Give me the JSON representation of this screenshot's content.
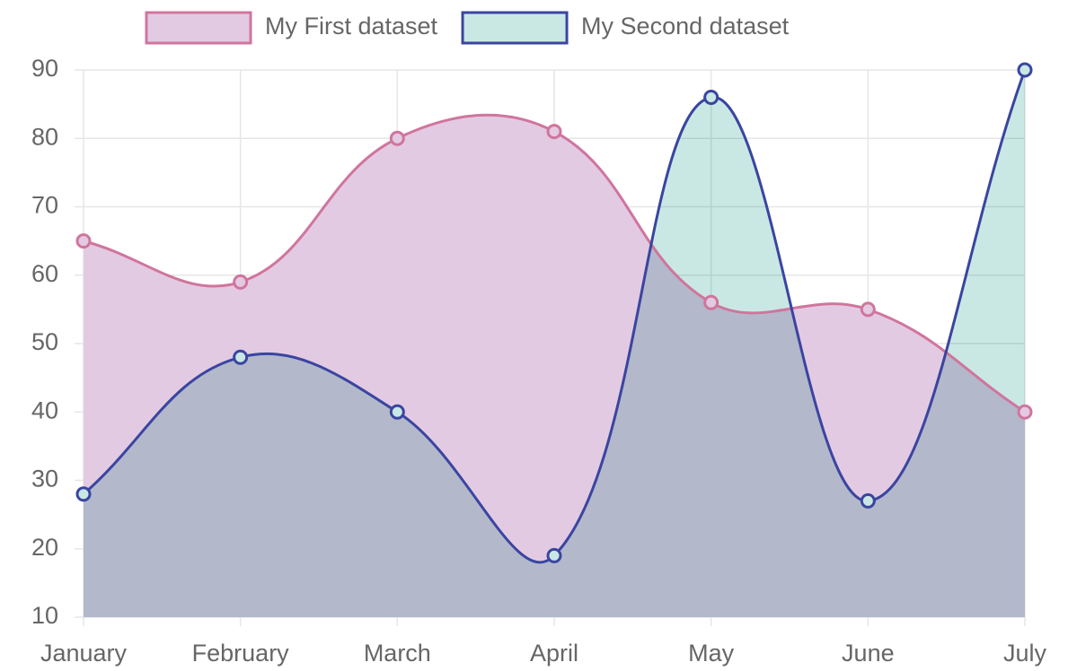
{
  "chart_data": {
    "type": "line",
    "categories": [
      "January",
      "February",
      "March",
      "April",
      "May",
      "June",
      "July"
    ],
    "series": [
      {
        "name": "My First dataset",
        "color": "#d0759c",
        "fill": "#e3cae3",
        "values": [
          65,
          59,
          80,
          81,
          56,
          55,
          40
        ]
      },
      {
        "name": "My Second dataset",
        "color": "#3a45a0",
        "fill": "#c9e8e4",
        "values": [
          28,
          48,
          40,
          19,
          86,
          27,
          90
        ]
      }
    ],
    "ylim": [
      10,
      90
    ],
    "yticks": [
      10,
      20,
      30,
      40,
      50,
      60,
      70,
      80,
      90
    ],
    "grid": true,
    "legend": "top"
  }
}
